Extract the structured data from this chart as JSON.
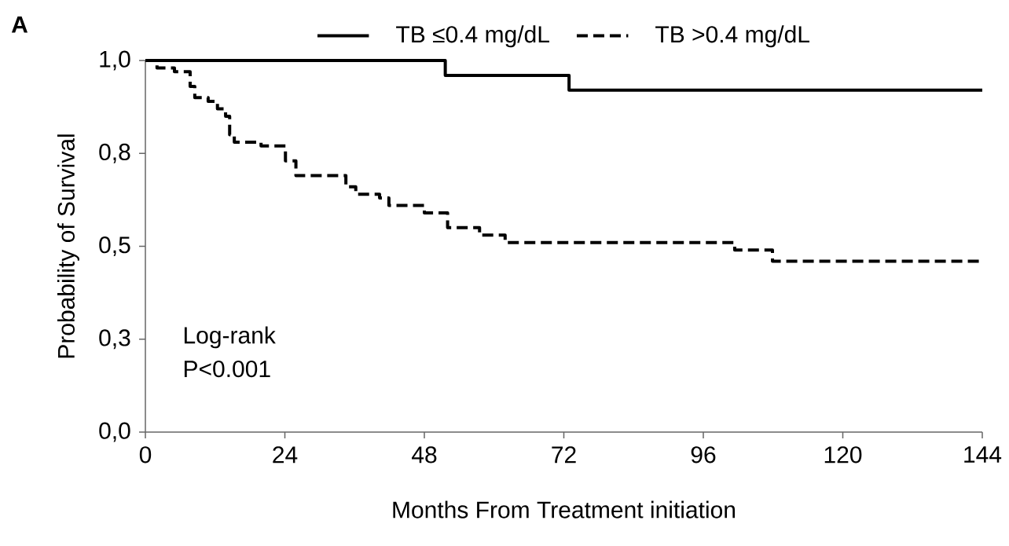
{
  "chart_data": {
    "type": "step",
    "xlabel": "Months From Treatment initiation",
    "ylabel": "Probability of Survival",
    "annotations": [
      "A",
      "Log-rank",
      "P<0.001"
    ],
    "xlim": [
      0,
      144
    ],
    "ylim": [
      0,
      1
    ],
    "xticks": [
      0,
      24,
      48,
      72,
      96,
      120,
      144
    ],
    "yticks": [
      {
        "value": 0,
        "label": "0,0"
      },
      {
        "value": 0.25,
        "label": "0,3"
      },
      {
        "value": 0.5,
        "label": "0,5"
      },
      {
        "value": 0.75,
        "label": "0,8"
      },
      {
        "value": 1,
        "label": "1,0"
      }
    ],
    "grid": false,
    "legend": "top",
    "marker": "none",
    "series": [
      {
        "name": "TB ≤0.4 mg/dL",
        "color": "#000000",
        "line_style": "solid",
        "x": [
          0,
          51.6,
          72.9,
          144
        ],
        "values": [
          1.0,
          0.96,
          0.92,
          0.92
        ]
      },
      {
        "name": "TB >0.4 mg/dL",
        "color": "#000000",
        "line_style": "dashed",
        "x": [
          0,
          2,
          5,
          7.7,
          8.5,
          10.8,
          12.4,
          13.8,
          14.5,
          15.3,
          19.9,
          24.1,
          25.9,
          34.5,
          36.2,
          40.3,
          41.9,
          48,
          52,
          57.5,
          61.9,
          101.4,
          107.9,
          144
        ],
        "values": [
          1.0,
          0.98,
          0.97,
          0.93,
          0.9,
          0.89,
          0.87,
          0.85,
          0.8,
          0.78,
          0.77,
          0.73,
          0.69,
          0.66,
          0.64,
          0.63,
          0.61,
          0.59,
          0.55,
          0.53,
          0.51,
          0.49,
          0.46,
          0.46
        ]
      }
    ]
  }
}
